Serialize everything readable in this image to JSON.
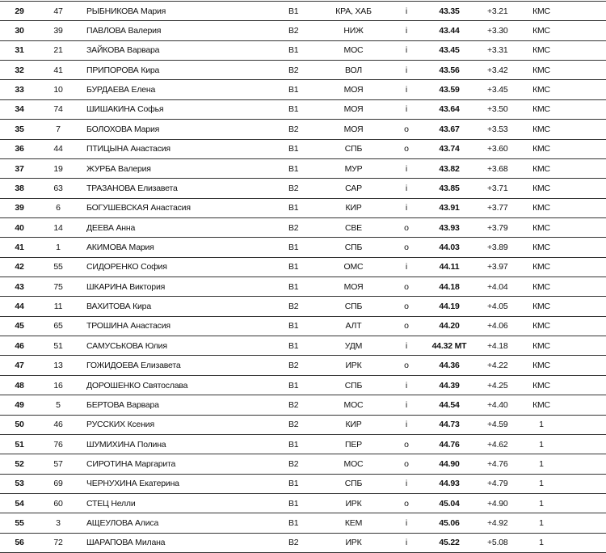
{
  "results": [
    {
      "place": "29",
      "bib": "47",
      "name": "РЫБНИКОВА Мария",
      "group": "B1",
      "region": "КРА, ХАБ",
      "lane": "i",
      "time": "43.35",
      "diff": "+3.21",
      "rank": "КМС"
    },
    {
      "place": "30",
      "bib": "39",
      "name": "ПАВЛОВА Валерия",
      "group": "B2",
      "region": "НИЖ",
      "lane": "i",
      "time": "43.44",
      "diff": "+3.30",
      "rank": "КМС"
    },
    {
      "place": "31",
      "bib": "21",
      "name": "ЗАЙКОВА Варвара",
      "group": "B1",
      "region": "МОС",
      "lane": "i",
      "time": "43.45",
      "diff": "+3.31",
      "rank": "КМС"
    },
    {
      "place": "32",
      "bib": "41",
      "name": "ПРИПОРОВА Кира",
      "group": "B2",
      "region": "ВОЛ",
      "lane": "i",
      "time": "43.56",
      "diff": "+3.42",
      "rank": "КМС"
    },
    {
      "place": "33",
      "bib": "10",
      "name": "БУРДАЕВА Елена",
      "group": "B1",
      "region": "МОЯ",
      "lane": "i",
      "time": "43.59",
      "diff": "+3.45",
      "rank": "КМС"
    },
    {
      "place": "34",
      "bib": "74",
      "name": "ШИШАКИНА Софья",
      "group": "B1",
      "region": "МОЯ",
      "lane": "i",
      "time": "43.64",
      "diff": "+3.50",
      "rank": "КМС"
    },
    {
      "place": "35",
      "bib": "7",
      "name": "БОЛОХОВА Мария",
      "group": "B2",
      "region": "МОЯ",
      "lane": "o",
      "time": "43.67",
      "diff": "+3.53",
      "rank": "КМС"
    },
    {
      "place": "36",
      "bib": "44",
      "name": "ПТИЦЫНА Анастасия",
      "group": "B1",
      "region": "СПБ",
      "lane": "o",
      "time": "43.74",
      "diff": "+3.60",
      "rank": "КМС"
    },
    {
      "place": "37",
      "bib": "19",
      "name": "ЖУРБА Валерия",
      "group": "B1",
      "region": "МУР",
      "lane": "i",
      "time": "43.82",
      "diff": "+3.68",
      "rank": "КМС"
    },
    {
      "place": "38",
      "bib": "63",
      "name": "ТРАЗАНОВА Елизавета",
      "group": "B2",
      "region": "САР",
      "lane": "i",
      "time": "43.85",
      "diff": "+3.71",
      "rank": "КМС"
    },
    {
      "place": "39",
      "bib": "6",
      "name": "БОГУШЕВСКАЯ Анастасия",
      "group": "B1",
      "region": "КИР",
      "lane": "i",
      "time": "43.91",
      "diff": "+3.77",
      "rank": "КМС"
    },
    {
      "place": "40",
      "bib": "14",
      "name": "ДЕЕВА Анна",
      "group": "B2",
      "region": "СВЕ",
      "lane": "o",
      "time": "43.93",
      "diff": "+3.79",
      "rank": "КМС"
    },
    {
      "place": "41",
      "bib": "1",
      "name": "АКИМОВА Мария",
      "group": "B1",
      "region": "СПБ",
      "lane": "o",
      "time": "44.03",
      "diff": "+3.89",
      "rank": "КМС"
    },
    {
      "place": "42",
      "bib": "55",
      "name": "СИДОРЕНКО София",
      "group": "B1",
      "region": "ОМС",
      "lane": "i",
      "time": "44.11",
      "diff": "+3.97",
      "rank": "КМС"
    },
    {
      "place": "43",
      "bib": "75",
      "name": "ШКАРИНА Виктория",
      "group": "B1",
      "region": "МОЯ",
      "lane": "o",
      "time": "44.18",
      "diff": "+4.04",
      "rank": "КМС"
    },
    {
      "place": "44",
      "bib": "11",
      "name": "ВАХИТОВА Кира",
      "group": "B2",
      "region": "СПБ",
      "lane": "o",
      "time": "44.19",
      "diff": "+4.05",
      "rank": "КМС"
    },
    {
      "place": "45",
      "bib": "65",
      "name": "ТРОШИНА Анастасия",
      "group": "B1",
      "region": "АЛТ",
      "lane": "o",
      "time": "44.20",
      "diff": "+4.06",
      "rank": "КМС"
    },
    {
      "place": "46",
      "bib": "51",
      "name": "САМУСЬКОВА Юлия",
      "group": "B1",
      "region": "УДМ",
      "lane": "i",
      "time": "44.32 МТ",
      "diff": "+4.18",
      "rank": "КМС"
    },
    {
      "place": "47",
      "bib": "13",
      "name": "ГОЖИДОЕВА Елизавета",
      "group": "B2",
      "region": "ИРК",
      "lane": "o",
      "time": "44.36",
      "diff": "+4.22",
      "rank": "КМС"
    },
    {
      "place": "48",
      "bib": "16",
      "name": "ДОРОШЕНКО Святослава",
      "group": "B1",
      "region": "СПБ",
      "lane": "i",
      "time": "44.39",
      "diff": "+4.25",
      "rank": "КМС"
    },
    {
      "place": "49",
      "bib": "5",
      "name": "БЕРТОВА Варвара",
      "group": "B2",
      "region": "МОС",
      "lane": "i",
      "time": "44.54",
      "diff": "+4.40",
      "rank": "КМС"
    },
    {
      "place": "50",
      "bib": "46",
      "name": "РУССКИХ Ксения",
      "group": "B2",
      "region": "КИР",
      "lane": "i",
      "time": "44.73",
      "diff": "+4.59",
      "rank": "1"
    },
    {
      "place": "51",
      "bib": "76",
      "name": "ШУМИХИНА Полина",
      "group": "B1",
      "region": "ПЕР",
      "lane": "o",
      "time": "44.76",
      "diff": "+4.62",
      "rank": "1"
    },
    {
      "place": "52",
      "bib": "57",
      "name": "СИРОТИНА Маргарита",
      "group": "B2",
      "region": "МОС",
      "lane": "o",
      "time": "44.90",
      "diff": "+4.76",
      "rank": "1"
    },
    {
      "place": "53",
      "bib": "69",
      "name": "ЧЕРНУХИНА Екатерина",
      "group": "B1",
      "region": "СПБ",
      "lane": "i",
      "time": "44.93",
      "diff": "+4.79",
      "rank": "1"
    },
    {
      "place": "54",
      "bib": "60",
      "name": "СТЕЦ Нелли",
      "group": "B1",
      "region": "ИРК",
      "lane": "o",
      "time": "45.04",
      "diff": "+4.90",
      "rank": "1"
    },
    {
      "place": "55",
      "bib": "3",
      "name": "АЩЕУЛОВА Алиса",
      "group": "B1",
      "region": "КЕМ",
      "lane": "i",
      "time": "45.06",
      "diff": "+4.92",
      "rank": "1"
    },
    {
      "place": "56",
      "bib": "72",
      "name": "ШАРАПОВА Милана",
      "group": "B2",
      "region": "ИРК",
      "lane": "i",
      "time": "45.22",
      "diff": "+5.08",
      "rank": "1"
    }
  ]
}
